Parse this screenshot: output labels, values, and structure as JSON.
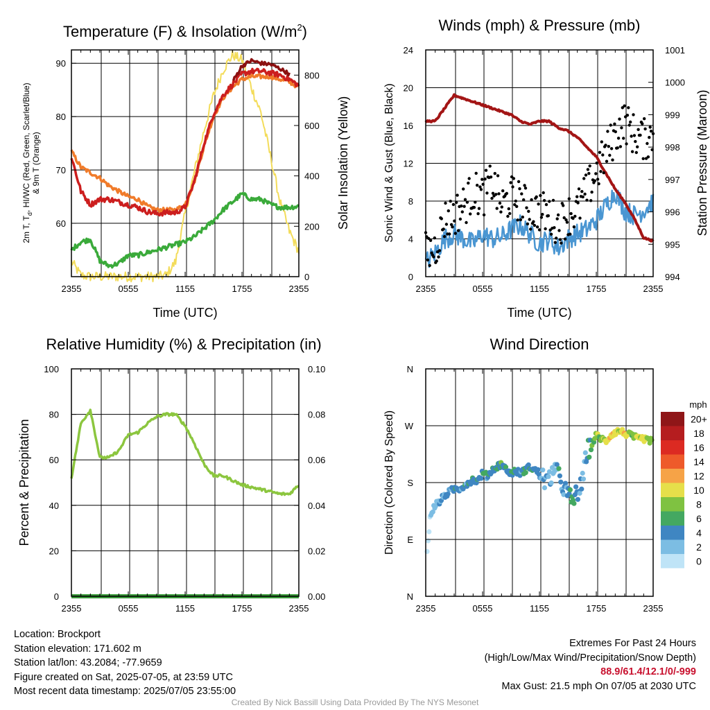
{
  "panels": {
    "temperature": {
      "title": "Temperature (F) & Insolation (W/m",
      "title_sup": "2",
      "title_end": ")",
      "ylabel_left_1": "2m T, T",
      "ylabel_left_sub": "d",
      "ylabel_left_2": ", HI/WC (Red, Green, Scarlet/Blue)",
      "ylabel_left_3": "& 9m T (Orange)",
      "ylabel_right": "Solar Insolation (Yellow)",
      "xlabel": "Time (UTC)",
      "yticks_left": [
        "60",
        "70",
        "80",
        "90"
      ],
      "yticks_right": [
        "0",
        "200",
        "400",
        "600",
        "800"
      ],
      "xticks": [
        "2355",
        "0555",
        "1155",
        "1755",
        "2355"
      ]
    },
    "winds": {
      "title": "Winds (mph) & Pressure (mb)",
      "ylabel_left": "Sonic Wind & Gust (Blue, Black)",
      "ylabel_right": "Station Pressure (Maroon)",
      "xlabel": "Time (UTC)",
      "yticks_left": [
        "0",
        "4",
        "8",
        "12",
        "16",
        "20",
        "24"
      ],
      "yticks_right": [
        "994",
        "995",
        "996",
        "997",
        "998",
        "999",
        "1000",
        "1001"
      ],
      "xticks": [
        "2355",
        "0555",
        "1155",
        "1755",
        "2355"
      ]
    },
    "humidity": {
      "title": "Relative Humidity (%) & Precipitation (in)",
      "ylabel_left": "Percent & Precipitation",
      "yticks_left": [
        "0",
        "20",
        "40",
        "60",
        "80",
        "100"
      ],
      "yticks_right": [
        "0.00",
        "0.02",
        "0.04",
        "0.06",
        "0.08",
        "0.10"
      ],
      "xticks": [
        "2355",
        "0555",
        "1155",
        "1755",
        "2355"
      ]
    },
    "direction": {
      "title": "Wind Direction",
      "ylabel_left": "Direction (Colored By Speed)",
      "yticks_left": [
        "N",
        "E",
        "S",
        "W",
        "N"
      ],
      "xticks": [
        "2355",
        "0555",
        "1155",
        "1755",
        "2355"
      ],
      "legend_title": "mph",
      "legend_labels": [
        "0",
        "2",
        "4",
        "6",
        "8",
        "10",
        "12",
        "14",
        "16",
        "18",
        "20+"
      ],
      "legend_colors": [
        "#bfe4f7",
        "#7cbde3",
        "#3f86c2",
        "#44a861",
        "#7fc241",
        "#e6df4a",
        "#f6a347",
        "#ee5a2a",
        "#dc2a22",
        "#b51d1f",
        "#8f1618"
      ]
    }
  },
  "colors": {
    "temp_red": "#cc1e1e",
    "temp_orange": "#f07b2a",
    "temp_dew_green": "#3aaa3a",
    "temp_hi": "#8b1010",
    "insolation_yellow": "#f3dc5a",
    "wind_blue": "#4a96d2",
    "gust_black": "#000000",
    "pressure_maroon": "#a31515",
    "rh_green": "#8cc63f",
    "precip_green": "#3a9a3a"
  },
  "chart_data": [
    {
      "type": "line",
      "title": "Temperature (F) & Insolation (W/m2)",
      "xlabel": "Time (UTC)",
      "x": [
        0,
        1,
        2,
        3,
        4,
        5,
        6,
        7,
        8,
        9,
        10,
        11,
        12,
        13,
        14,
        15,
        16,
        17,
        18,
        19,
        20,
        21,
        22,
        23,
        24
      ],
      "ylim_left": [
        50,
        92.5
      ],
      "ylim_right": [
        0,
        900
      ],
      "series": [
        {
          "name": "2m T (Red)",
          "axis": "left",
          "values": [
            72.5,
            66,
            63.5,
            64.5,
            64.5,
            64,
            63.5,
            63,
            62.2,
            61.8,
            62,
            62,
            63,
            68,
            75,
            80.5,
            84,
            86,
            88,
            88.5,
            88.5,
            88.2,
            87.8,
            87,
            85.8
          ]
        },
        {
          "name": "9m T (Orange)",
          "axis": "left",
          "values": [
            73.5,
            70.5,
            69.5,
            68.5,
            67,
            66,
            65,
            64.5,
            63.2,
            62.5,
            62.5,
            62.5,
            63.5,
            68,
            74.5,
            80,
            83.5,
            85.5,
            87,
            87.5,
            87.5,
            87.5,
            87,
            86.5,
            85.5
          ]
        },
        {
          "name": "Td (Green)",
          "axis": "left",
          "values": [
            55,
            56.5,
            57,
            53,
            52,
            52.5,
            54,
            54,
            54.5,
            55,
            55.5,
            56,
            56.5,
            57.5,
            59,
            60.5,
            62.5,
            64,
            65.5,
            64.5,
            64.5,
            63.5,
            63,
            63,
            63.2
          ]
        },
        {
          "name": "HI (Scarlet)",
          "axis": "left",
          "values": [
            null,
            null,
            null,
            null,
            null,
            null,
            null,
            null,
            null,
            null,
            null,
            null,
            null,
            null,
            null,
            null,
            null,
            86.5,
            89.5,
            90.5,
            90,
            89.8,
            89,
            88,
            null
          ]
        },
        {
          "name": "Solar Insolation (Yellow)",
          "axis": "right",
          "values": [
            60,
            5,
            0,
            0,
            0,
            0,
            0,
            0,
            0,
            0,
            5,
            60,
            250,
            420,
            580,
            720,
            820,
            880,
            860,
            750,
            650,
            480,
            300,
            180,
            100
          ]
        }
      ]
    },
    {
      "type": "line",
      "title": "Winds (mph) & Pressure (mb)",
      "xlabel": "Time (UTC)",
      "x": [
        0,
        1,
        2,
        3,
        4,
        5,
        6,
        7,
        8,
        9,
        10,
        11,
        12,
        13,
        14,
        15,
        16,
        17,
        18,
        19,
        20,
        21,
        22,
        23,
        24
      ],
      "ylim_left": [
        0,
        24
      ],
      "ylim_right": [
        994,
        1001
      ],
      "series": [
        {
          "name": "Sonic Wind (Blue)",
          "axis": "left",
          "values": [
            1.5,
            2.5,
            4,
            4.5,
            4,
            3.5,
            4.5,
            4,
            4.2,
            5,
            5.5,
            4.5,
            3.5,
            4,
            3,
            4,
            4.5,
            5,
            6,
            7.5,
            9,
            7,
            6.5,
            7,
            8
          ]
        },
        {
          "name": "Gust (Black)",
          "axis": "left",
          "values": [
            2.5,
            3,
            6,
            6.5,
            7.5,
            9,
            8.5,
            10,
            7.5,
            8.5,
            8,
            7,
            7,
            6.5,
            5.5,
            6.5,
            7,
            9,
            11,
            13,
            15,
            16.5,
            15,
            14.5,
            15
          ]
        },
        {
          "name": "Station Pressure (Maroon)",
          "axis": "right",
          "values": [
            998.8,
            998.8,
            999.2,
            999.6,
            999.5,
            999.4,
            999.3,
            999.2,
            999.1,
            999.0,
            998.8,
            998.7,
            998.8,
            998.8,
            998.6,
            998.5,
            998.3,
            998.0,
            997.7,
            997.2,
            996.7,
            996.3,
            995.8,
            995.2,
            995.1
          ]
        }
      ]
    },
    {
      "type": "line",
      "title": "Relative Humidity (%) & Precipitation (in)",
      "x": [
        0,
        1,
        2,
        3,
        4,
        5,
        6,
        7,
        8,
        9,
        10,
        11,
        12,
        13,
        14,
        15,
        16,
        17,
        18,
        19,
        20,
        21,
        22,
        23,
        24
      ],
      "ylim_left": [
        0,
        100
      ],
      "ylim_right": [
        0,
        0.1
      ],
      "series": [
        {
          "name": "Relative Humidity",
          "axis": "left",
          "values": [
            52,
            76,
            82,
            61,
            61,
            64,
            71,
            72,
            76,
            79,
            80,
            80,
            75,
            67,
            58,
            53,
            53,
            51,
            49,
            48,
            47,
            46,
            45,
            45,
            49
          ]
        },
        {
          "name": "Precipitation",
          "axis": "right",
          "values": [
            0,
            0,
            0,
            0,
            0,
            0,
            0,
            0,
            0,
            0,
            0,
            0,
            0,
            0,
            0,
            0,
            0,
            0,
            0,
            0,
            0,
            0,
            0,
            0,
            0
          ]
        }
      ]
    },
    {
      "type": "scatter",
      "title": "Wind Direction",
      "x": [
        0,
        0.5,
        1,
        1.5,
        2,
        2.5,
        3,
        3.5,
        4,
        4.5,
        5,
        5.5,
        6,
        6.5,
        7,
        7.5,
        8,
        8.5,
        9,
        9.5,
        10,
        10.5,
        11,
        11.5,
        12,
        12.5,
        13,
        13.5,
        14,
        14.5,
        15,
        15.5,
        16,
        16.5,
        17,
        17.5,
        18,
        18.5,
        19,
        19.5,
        20,
        20.5,
        21,
        21.5,
        22,
        22.5,
        23,
        23.5,
        24
      ],
      "direction_deg": [
        45,
        130,
        145,
        150,
        160,
        165,
        170,
        170,
        175,
        180,
        185,
        182,
        195,
        190,
        200,
        205,
        210,
        200,
        195,
        198,
        195,
        200,
        205,
        200,
        195,
        185,
        180,
        205,
        190,
        175,
        160,
        150,
        165,
        175,
        230,
        240,
        255,
        250,
        245,
        255,
        260,
        262,
        258,
        255,
        252,
        248,
        250,
        245,
        250
      ],
      "speed_mph": [
        1,
        2,
        2,
        3,
        3,
        4,
        4,
        4,
        4,
        4,
        4,
        4,
        5,
        4,
        5,
        5,
        6,
        4,
        4,
        4,
        4,
        5,
        4,
        4,
        4,
        3,
        3,
        2,
        4,
        3,
        4,
        6,
        4,
        3,
        4,
        6,
        8,
        8,
        9,
        10,
        10,
        9,
        10,
        8,
        8,
        9,
        10,
        8,
        8
      ],
      "ylim": [
        0,
        360
      ]
    }
  ],
  "info": {
    "location": "Location: Brockport",
    "elevation": "Station elevation: 171.602 m",
    "latlon": "Station lat/lon: 43.2084; -77.9659",
    "created": "Figure created on Sat, 2025-07-05, at 23:59 UTC",
    "recent": "Most recent data timestamp: 2025/07/05 23:55:00",
    "extremes_title": "Extremes For Past 24 Hours",
    "extremes_legend": "(High/Low/Max Wind/Precipitation/Snow Depth)",
    "extremes_values": "88.9/61.4/12.1/0/-999",
    "max_gust": "Max Gust: 21.5 mph On 07/05 at 2030 UTC",
    "credit": "Created By Nick Bassill Using Data Provided By The NYS Mesonet"
  }
}
